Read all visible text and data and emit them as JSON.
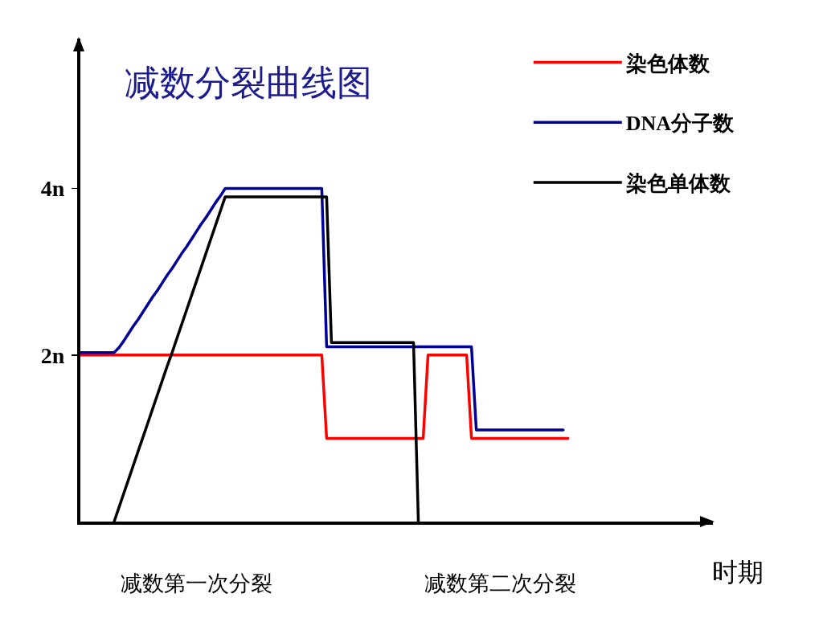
{
  "chart_data": {
    "type": "line",
    "title": "减数分裂曲线图",
    "xlabel": "时期",
    "categories": [
      null,
      null,
      null,
      null,
      null,
      null,
      null,
      null,
      null,
      null,
      null,
      null,
      null,
      null,
      null,
      null,
      null,
      null,
      null,
      null,
      null,
      null,
      null,
      null,
      "减数第一次分裂",
      null,
      null,
      null,
      null,
      null,
      null,
      null,
      null,
      null,
      null,
      null,
      null,
      null,
      null,
      null,
      null,
      null,
      null,
      null,
      null,
      null,
      null,
      null,
      null,
      null,
      null,
      null,
      null,
      null,
      null,
      null,
      null,
      null,
      null,
      null,
      null,
      null,
      null,
      null,
      null,
      null,
      null,
      null,
      null,
      null,
      null,
      null,
      null,
      null,
      null,
      null,
      null,
      null,
      null,
      null,
      null,
      null,
      null,
      null,
      null,
      null,
      null,
      "减数第二次分裂",
      null,
      null,
      null,
      null,
      null,
      null,
      null,
      null,
      null,
      null,
      null,
      null,
      null,
      null,
      null,
      null,
      null,
      null,
      null,
      null,
      null,
      null,
      null,
      null,
      null,
      null,
      null,
      null,
      null,
      null,
      null,
      null,
      null,
      null,
      null,
      null,
      null,
      null,
      null,
      null,
      null,
      null,
      null,
      null
    ],
    "ylim": [
      0,
      5.8
    ],
    "yticks": [
      {
        "value": 2,
        "label": "2n"
      },
      {
        "value": 4,
        "label": "4n"
      }
    ],
    "series": [
      {
        "name": "染色体数",
        "color": "#ff0000",
        "values": [
          2,
          2,
          2,
          2,
          2,
          2,
          2,
          2,
          2,
          2,
          2,
          2,
          2,
          2,
          2,
          2,
          2,
          2,
          2,
          2,
          2,
          2,
          2,
          2,
          2,
          2,
          2,
          2,
          2,
          2,
          2,
          2,
          2,
          2,
          2,
          2,
          2,
          2,
          2,
          2,
          2,
          2,
          2,
          2,
          2,
          2,
          2,
          2,
          2,
          2,
          2,
          1,
          1,
          1,
          1,
          1,
          1,
          1,
          1,
          1,
          1,
          1,
          1,
          1,
          1,
          1,
          1,
          1,
          1,
          1,
          1,
          1,
          2,
          2,
          2,
          2,
          2,
          2,
          2,
          2,
          2,
          1,
          1,
          1,
          1,
          1,
          1,
          1,
          1,
          1,
          1,
          1,
          1,
          1,
          1,
          1,
          1,
          1,
          1,
          1,
          1,
          1,
          null,
          null,
          null,
          null,
          null,
          null,
          null,
          null,
          null,
          null,
          null,
          null,
          null,
          null,
          null,
          null,
          null,
          null,
          null,
          null,
          null,
          null,
          null,
          null,
          null,
          null,
          null,
          null,
          null,
          null
        ]
      },
      {
        "name": "DNA分子数",
        "color": "#000099",
        "values": [
          2.03,
          2.03,
          2.03,
          2.03,
          2.03,
          2.03,
          2.03,
          2.03,
          2.09,
          2.17,
          2.26,
          2.35,
          2.43,
          2.52,
          2.61,
          2.7,
          2.78,
          2.87,
          2.96,
          3.04,
          3.13,
          3.22,
          3.3,
          3.39,
          3.48,
          3.57,
          3.65,
          3.74,
          3.83,
          3.91,
          4,
          4,
          4,
          4,
          4,
          4,
          4,
          4,
          4,
          4,
          4,
          4,
          4,
          4,
          4,
          4,
          4,
          4,
          4,
          4,
          4,
          2.1,
          2.1,
          2.1,
          2.1,
          2.1,
          2.1,
          2.1,
          2.1,
          2.1,
          2.1,
          2.1,
          2.1,
          2.1,
          2.1,
          2.1,
          2.1,
          2.1,
          2.1,
          2.1,
          2.1,
          2.1,
          2.1,
          2.1,
          2.1,
          2.1,
          2.1,
          2.1,
          2.1,
          2.1,
          2.1,
          2.1,
          1.1,
          1.1,
          1.1,
          1.1,
          1.1,
          1.1,
          1.1,
          1.1,
          1.1,
          1.1,
          1.1,
          1.1,
          1.1,
          1.1,
          1.1,
          1.1,
          1.1,
          1.1,
          1.1,
          null,
          null,
          null,
          null,
          null,
          null,
          null,
          null,
          null,
          null,
          null,
          null,
          null,
          null,
          null,
          null,
          null,
          null,
          null,
          null,
          null,
          null,
          null,
          null,
          null,
          null,
          null,
          null,
          null,
          null,
          null
        ]
      },
      {
        "name": "染色单体数",
        "color": "#000000",
        "values": [
          null,
          null,
          null,
          null,
          null,
          null,
          null,
          0,
          0.17,
          0.34,
          0.51,
          0.68,
          0.85,
          1.02,
          1.19,
          1.36,
          1.53,
          1.7,
          1.87,
          2.03,
          2.2,
          2.37,
          2.54,
          2.71,
          2.88,
          3.05,
          3.22,
          3.39,
          3.56,
          3.73,
          3.9,
          3.9,
          3.9,
          3.9,
          3.9,
          3.9,
          3.9,
          3.9,
          3.9,
          3.9,
          3.9,
          3.9,
          3.9,
          3.9,
          3.9,
          3.9,
          3.9,
          3.9,
          3.9,
          3.9,
          3.9,
          3.9,
          2.15,
          2.15,
          2.15,
          2.15,
          2.15,
          2.15,
          2.15,
          2.15,
          2.15,
          2.15,
          2.15,
          2.15,
          2.15,
          2.15,
          2.15,
          2.15,
          2.15,
          2.15,
          0,
          null,
          null,
          null,
          null,
          null,
          null,
          null,
          null,
          null,
          null,
          null,
          null,
          null,
          null,
          null,
          null,
          null,
          null,
          null,
          null,
          null,
          null,
          null,
          null,
          null,
          null,
          null,
          null,
          null,
          null,
          null,
          null,
          null,
          null,
          null,
          null,
          null,
          null,
          null,
          null,
          null,
          null,
          null,
          null,
          null,
          null,
          null,
          null,
          null,
          null,
          null,
          null,
          null,
          null,
          null,
          null,
          null,
          null,
          null,
          null,
          null
        ]
      }
    ],
    "grid": false,
    "legend": "top right",
    "line_style": "solid"
  }
}
